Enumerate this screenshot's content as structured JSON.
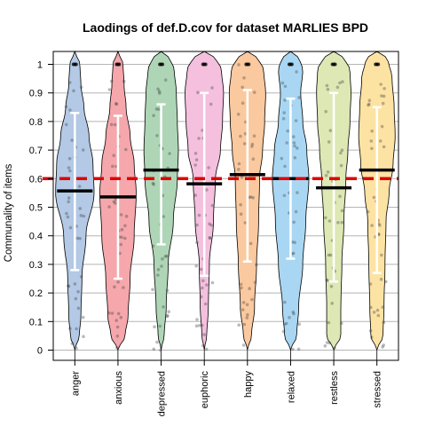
{
  "chart_data": {
    "type": "violin",
    "title": "Laodings of def.D.cov for dataset MARLIES BPD",
    "ylabel": "Communality of items",
    "xlabel": "",
    "ylim": [
      0,
      1
    ],
    "y_ticks": [
      0,
      0.1,
      0.2,
      0.3,
      0.4,
      0.5,
      0.6,
      0.7,
      0.8,
      0.9,
      1
    ],
    "grid": "horizontal",
    "reference_line": {
      "y": 0.6,
      "color": "#e00000",
      "style": "dashed"
    },
    "categories": [
      "anger",
      "anxious",
      "depressed",
      "euphoric",
      "happy",
      "relaxed",
      "restless",
      "stressed"
    ],
    "colors": [
      "#b3c9e5",
      "#f5a7ac",
      "#aed6b6",
      "#f4c0de",
      "#fbc99f",
      "#a9d7f3",
      "#dde8b4",
      "#fde3a3"
    ],
    "medians": [
      0.557,
      0.536,
      0.63,
      0.582,
      0.614,
      0.6,
      0.568,
      0.63
    ],
    "error_bar_low": [
      0.28,
      0.25,
      0.37,
      0.26,
      0.31,
      0.32,
      0.24,
      0.27
    ],
    "error_bar_high": [
      0.83,
      0.82,
      0.86,
      0.9,
      0.91,
      0.88,
      0.9,
      0.85
    ]
  }
}
